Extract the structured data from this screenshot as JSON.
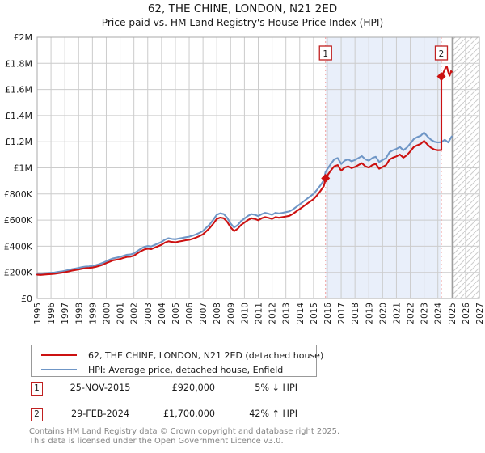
{
  "title": "62, THE CHINE, LONDON, N21 2ED",
  "subtitle": "Price paid vs. HM Land Registry's House Price Index (HPI)",
  "colors": {
    "property_red": "#cc1111",
    "hpi_blue": "#6f96c6",
    "shaded_region": "#e9effa",
    "dashed_sale_line": "#ef9a9a",
    "grid": "#cccccc",
    "plot_border": "#a8a8a8",
    "marker_box_border": "#c02020"
  },
  "chart_data": {
    "type": "line",
    "title": "62, THE CHINE, LONDON, N21 2ED",
    "subtitle": "Price paid vs. HM Land Registry's House Price Index (HPI)",
    "x_range": [
      1995,
      2027
    ],
    "y_range": [
      0,
      2000000
    ],
    "grid": true,
    "legend_position": "bottom",
    "x_ticks": [
      1995,
      1996,
      1997,
      1998,
      1999,
      2000,
      2001,
      2002,
      2003,
      2004,
      2005,
      2006,
      2007,
      2008,
      2009,
      2010,
      2011,
      2012,
      2013,
      2014,
      2015,
      2016,
      2017,
      2018,
      2019,
      2020,
      2021,
      2022,
      2023,
      2024,
      2025,
      2026,
      2027
    ],
    "y_ticks": [
      {
        "value": 0,
        "label": "£0"
      },
      {
        "value": 200000,
        "label": "£200K"
      },
      {
        "value": 400000,
        "label": "£400K"
      },
      {
        "value": 600000,
        "label": "£600K"
      },
      {
        "value": 800000,
        "label": "£800K"
      },
      {
        "value": 1000000,
        "label": "£1M"
      },
      {
        "value": 1200000,
        "label": "£1.2M"
      },
      {
        "value": 1400000,
        "label": "£1.4M"
      },
      {
        "value": 1600000,
        "label": "£1.6M"
      },
      {
        "value": 1800000,
        "label": "£1.8M"
      },
      {
        "value": 2000000,
        "label": "£2M"
      }
    ],
    "grid_color": "#cccccc",
    "border_color": "#a8a8a8",
    "dashed_line_color": "#ef9a9a",
    "shaded_region": {
      "from": 2015.87,
      "to": 2024.25,
      "color": "#e9effa"
    },
    "hatched_region": {
      "from": 2025.08,
      "to": 2027
    },
    "sale_markers": [
      {
        "label": "1",
        "x": 2015.87,
        "y": 920000
      },
      {
        "label": "2",
        "x": 2024.25,
        "y": 1700000
      }
    ],
    "series": [
      {
        "name": "62, THE CHINE, LONDON, N21 2ED (detached house)",
        "color": "#cc1111",
        "points": [
          [
            1995,
            182000
          ],
          [
            1995.25,
            181000
          ],
          [
            1995.5,
            183000
          ],
          [
            1995.75,
            185000
          ],
          [
            1996,
            187000
          ],
          [
            1996.25,
            189000
          ],
          [
            1996.5,
            193000
          ],
          [
            1996.75,
            197000
          ],
          [
            1997,
            201000
          ],
          [
            1997.25,
            207000
          ],
          [
            1997.5,
            213000
          ],
          [
            1997.75,
            218000
          ],
          [
            1998,
            222000
          ],
          [
            1998.25,
            228000
          ],
          [
            1998.5,
            232000
          ],
          [
            1998.75,
            234000
          ],
          [
            1999,
            237000
          ],
          [
            1999.25,
            242000
          ],
          [
            1999.5,
            250000
          ],
          [
            1999.75,
            259000
          ],
          [
            2000,
            271000
          ],
          [
            2000.25,
            282000
          ],
          [
            2000.5,
            292000
          ],
          [
            2000.75,
            297000
          ],
          [
            2001,
            303000
          ],
          [
            2001.25,
            311000
          ],
          [
            2001.5,
            318000
          ],
          [
            2001.75,
            320000
          ],
          [
            2002,
            328000
          ],
          [
            2002.25,
            345000
          ],
          [
            2002.5,
            362000
          ],
          [
            2002.75,
            375000
          ],
          [
            2003,
            381000
          ],
          [
            2003.25,
            378000
          ],
          [
            2003.5,
            389000
          ],
          [
            2003.75,
            400000
          ],
          [
            2004,
            411000
          ],
          [
            2004.25,
            428000
          ],
          [
            2004.5,
            438000
          ],
          [
            2004.75,
            433000
          ],
          [
            2005,
            430000
          ],
          [
            2005.25,
            436000
          ],
          [
            2005.5,
            440000
          ],
          [
            2005.75,
            446000
          ],
          [
            2006,
            449000
          ],
          [
            2006.25,
            457000
          ],
          [
            2006.5,
            466000
          ],
          [
            2006.75,
            478000
          ],
          [
            2007,
            491000
          ],
          [
            2007.25,
            516000
          ],
          [
            2007.5,
            541000
          ],
          [
            2007.75,
            573000
          ],
          [
            2008,
            609000
          ],
          [
            2008.25,
            619000
          ],
          [
            2008.5,
            614000
          ],
          [
            2008.75,
            587000
          ],
          [
            2009,
            545000
          ],
          [
            2009.25,
            516000
          ],
          [
            2009.5,
            533000
          ],
          [
            2009.75,
            562000
          ],
          [
            2010,
            581000
          ],
          [
            2010.25,
            600000
          ],
          [
            2010.5,
            614000
          ],
          [
            2010.75,
            609000
          ],
          [
            2011,
            599000
          ],
          [
            2011.25,
            614000
          ],
          [
            2011.5,
            623000
          ],
          [
            2011.75,
            617000
          ],
          [
            2012,
            609000
          ],
          [
            2012.25,
            623000
          ],
          [
            2012.5,
            618000
          ],
          [
            2012.75,
            623000
          ],
          [
            2013,
            628000
          ],
          [
            2013.25,
            633000
          ],
          [
            2013.5,
            647000
          ],
          [
            2013.75,
            666000
          ],
          [
            2014,
            685000
          ],
          [
            2014.25,
            704000
          ],
          [
            2014.5,
            723000
          ],
          [
            2014.75,
            742000
          ],
          [
            2015,
            761000
          ],
          [
            2015.25,
            789000
          ],
          [
            2015.5,
            823000
          ],
          [
            2015.75,
            861000
          ],
          [
            2015.87,
            920000
          ],
          [
            2016,
            941000
          ],
          [
            2016.25,
            979000
          ],
          [
            2016.5,
            1012000
          ],
          [
            2016.75,
            1021000
          ],
          [
            2017,
            979000
          ],
          [
            2017.25,
            1002000
          ],
          [
            2017.5,
            1012000
          ],
          [
            2017.75,
            998000
          ],
          [
            2018,
            1007000
          ],
          [
            2018.25,
            1021000
          ],
          [
            2018.5,
            1036000
          ],
          [
            2018.75,
            1012000
          ],
          [
            2019,
            1002000
          ],
          [
            2019.25,
            1021000
          ],
          [
            2019.5,
            1031000
          ],
          [
            2019.75,
            993000
          ],
          [
            2020,
            1007000
          ],
          [
            2020.25,
            1021000
          ],
          [
            2020.5,
            1064000
          ],
          [
            2020.75,
            1078000
          ],
          [
            2021,
            1088000
          ],
          [
            2021.25,
            1102000
          ],
          [
            2021.5,
            1078000
          ],
          [
            2021.75,
            1097000
          ],
          [
            2022,
            1126000
          ],
          [
            2022.25,
            1159000
          ],
          [
            2022.5,
            1173000
          ],
          [
            2022.75,
            1183000
          ],
          [
            2023,
            1207000
          ],
          [
            2023.25,
            1178000
          ],
          [
            2023.5,
            1154000
          ],
          [
            2023.75,
            1140000
          ],
          [
            2024,
            1135000
          ],
          [
            2024.25,
            1137000
          ],
          [
            2024.25,
            1700000
          ],
          [
            2024.4,
            1730000
          ],
          [
            2024.55,
            1765000
          ],
          [
            2024.65,
            1775000
          ],
          [
            2024.75,
            1735000
          ],
          [
            2024.85,
            1705000
          ],
          [
            2024.95,
            1740000
          ],
          [
            2025,
            1735000
          ]
        ]
      },
      {
        "name": "HPI: Average price, detached house, Enfield",
        "color": "#6f96c6",
        "points": [
          [
            1995,
            192000
          ],
          [
            1995.25,
            190000
          ],
          [
            1995.5,
            193000
          ],
          [
            1995.75,
            195000
          ],
          [
            1996,
            197000
          ],
          [
            1996.25,
            199000
          ],
          [
            1996.5,
            203000
          ],
          [
            1996.75,
            207000
          ],
          [
            1997,
            212000
          ],
          [
            1997.25,
            218000
          ],
          [
            1997.5,
            224000
          ],
          [
            1997.75,
            229000
          ],
          [
            1998,
            234000
          ],
          [
            1998.25,
            240000
          ],
          [
            1998.5,
            244000
          ],
          [
            1998.75,
            246000
          ],
          [
            1999,
            249000
          ],
          [
            1999.25,
            255000
          ],
          [
            1999.5,
            263000
          ],
          [
            1999.75,
            273000
          ],
          [
            2000,
            285000
          ],
          [
            2000.25,
            297000
          ],
          [
            2000.5,
            307000
          ],
          [
            2000.75,
            313000
          ],
          [
            2001,
            319000
          ],
          [
            2001.25,
            327000
          ],
          [
            2001.5,
            335000
          ],
          [
            2001.75,
            337000
          ],
          [
            2002,
            345000
          ],
          [
            2002.25,
            363000
          ],
          [
            2002.5,
            381000
          ],
          [
            2002.75,
            395000
          ],
          [
            2003,
            401000
          ],
          [
            2003.25,
            398000
          ],
          [
            2003.5,
            409000
          ],
          [
            2003.75,
            421000
          ],
          [
            2004,
            433000
          ],
          [
            2004.25,
            451000
          ],
          [
            2004.5,
            461000
          ],
          [
            2004.75,
            456000
          ],
          [
            2005,
            453000
          ],
          [
            2005.25,
            459000
          ],
          [
            2005.5,
            463000
          ],
          [
            2005.75,
            469000
          ],
          [
            2006,
            473000
          ],
          [
            2006.25,
            481000
          ],
          [
            2006.5,
            491000
          ],
          [
            2006.75,
            503000
          ],
          [
            2007,
            517000
          ],
          [
            2007.25,
            543000
          ],
          [
            2007.5,
            569000
          ],
          [
            2007.75,
            603000
          ],
          [
            2008,
            641000
          ],
          [
            2008.25,
            652000
          ],
          [
            2008.5,
            646000
          ],
          [
            2008.75,
            618000
          ],
          [
            2009,
            574000
          ],
          [
            2009.25,
            543000
          ],
          [
            2009.5,
            561000
          ],
          [
            2009.75,
            592000
          ],
          [
            2010,
            612000
          ],
          [
            2010.25,
            632000
          ],
          [
            2010.5,
            646000
          ],
          [
            2010.75,
            641000
          ],
          [
            2011,
            631000
          ],
          [
            2011.25,
            646000
          ],
          [
            2011.5,
            656000
          ],
          [
            2011.75,
            649000
          ],
          [
            2012,
            641000
          ],
          [
            2012.25,
            656000
          ],
          [
            2012.5,
            651000
          ],
          [
            2012.75,
            656000
          ],
          [
            2013,
            661000
          ],
          [
            2013.25,
            666000
          ],
          [
            2013.5,
            681000
          ],
          [
            2013.75,
            701000
          ],
          [
            2014,
            721000
          ],
          [
            2014.25,
            741000
          ],
          [
            2014.5,
            761000
          ],
          [
            2014.75,
            781000
          ],
          [
            2015,
            801000
          ],
          [
            2015.25,
            831000
          ],
          [
            2015.5,
            866000
          ],
          [
            2015.75,
            906000
          ],
          [
            2015.87,
            968000
          ],
          [
            2016,
            990000
          ],
          [
            2016.25,
            1030000
          ],
          [
            2016.5,
            1065000
          ],
          [
            2016.75,
            1075000
          ],
          [
            2017,
            1030000
          ],
          [
            2017.25,
            1055000
          ],
          [
            2017.5,
            1065000
          ],
          [
            2017.75,
            1050000
          ],
          [
            2018,
            1060000
          ],
          [
            2018.25,
            1075000
          ],
          [
            2018.5,
            1090000
          ],
          [
            2018.75,
            1065000
          ],
          [
            2019,
            1055000
          ],
          [
            2019.25,
            1075000
          ],
          [
            2019.5,
            1085000
          ],
          [
            2019.75,
            1045000
          ],
          [
            2020,
            1060000
          ],
          [
            2020.25,
            1075000
          ],
          [
            2020.5,
            1120000
          ],
          [
            2020.75,
            1135000
          ],
          [
            2021,
            1145000
          ],
          [
            2021.25,
            1160000
          ],
          [
            2021.5,
            1135000
          ],
          [
            2021.75,
            1155000
          ],
          [
            2022,
            1185000
          ],
          [
            2022.25,
            1220000
          ],
          [
            2022.5,
            1235000
          ],
          [
            2022.75,
            1245000
          ],
          [
            2023,
            1270000
          ],
          [
            2023.25,
            1240000
          ],
          [
            2023.5,
            1215000
          ],
          [
            2023.75,
            1200000
          ],
          [
            2024,
            1195000
          ],
          [
            2024.25,
            1197000
          ],
          [
            2024.5,
            1215000
          ],
          [
            2024.75,
            1195000
          ],
          [
            2025,
            1240000
          ]
        ]
      }
    ]
  },
  "legend": {
    "items": [
      {
        "label": "62, THE CHINE, LONDON, N21 2ED (detached house)",
        "color": "#cc1111"
      },
      {
        "label": "HPI: Average price, detached house, Enfield",
        "color": "#6f96c6"
      }
    ]
  },
  "transactions": [
    {
      "marker": "1",
      "date": "25-NOV-2015",
      "price": "£920,000",
      "hpi": "5% ↓ HPI"
    },
    {
      "marker": "2",
      "date": "29-FEB-2024",
      "price": "£1,700,000",
      "hpi": "42% ↑ HPI"
    }
  ],
  "footer": {
    "line1": "Contains HM Land Registry data © Crown copyright and database right 2025.",
    "line2": "This data is licensed under the Open Government Licence v3.0."
  }
}
